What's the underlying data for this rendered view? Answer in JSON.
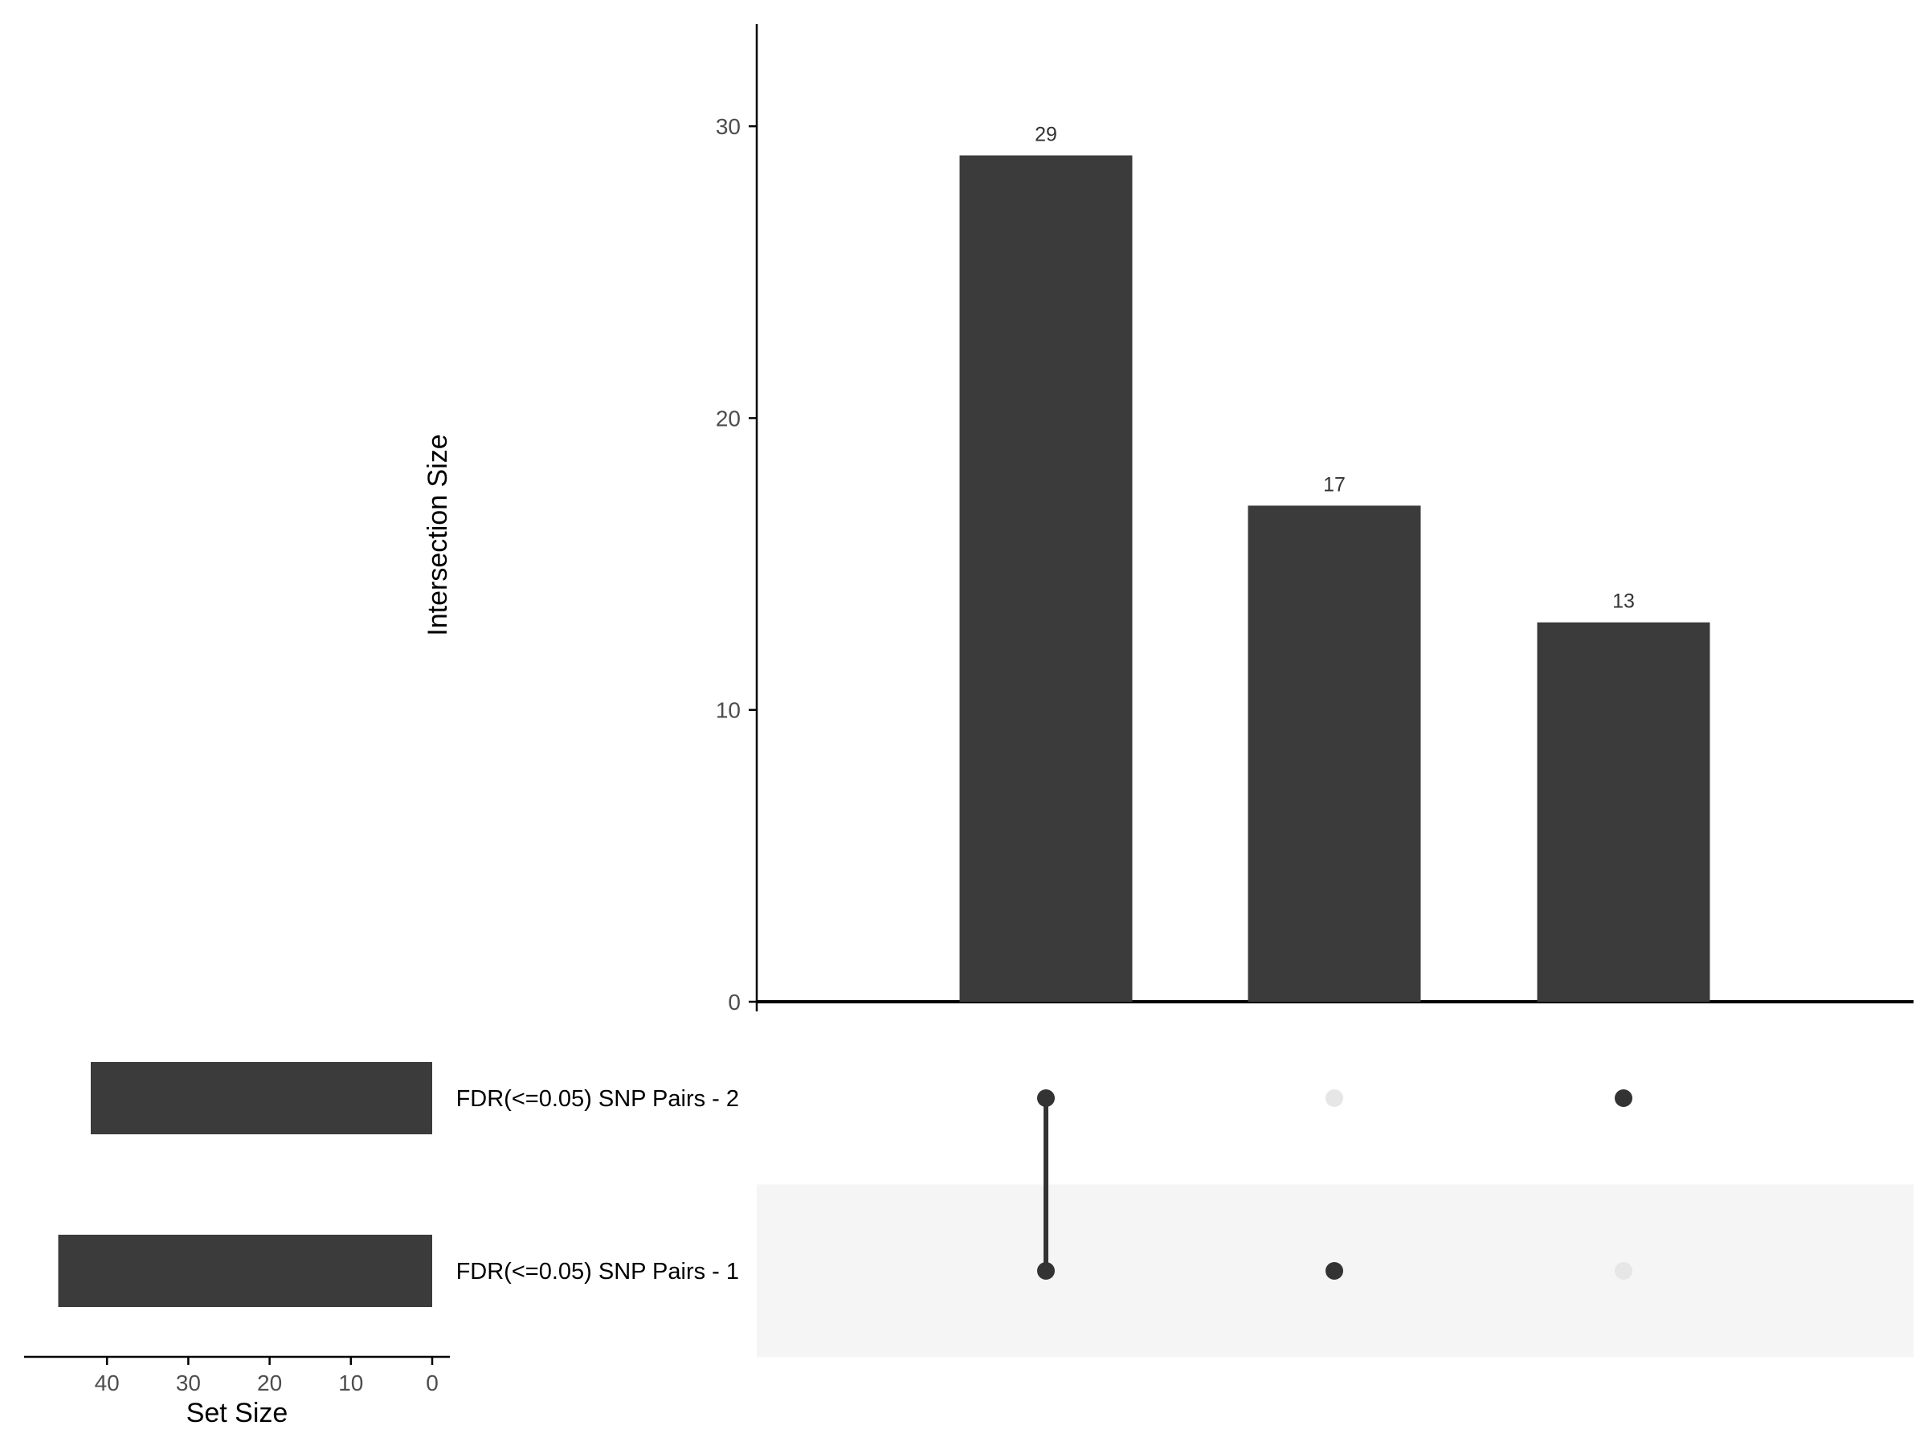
{
  "chart_data": {
    "type": "upset",
    "sets": [
      "FDR(<=0.05) SNP Pairs - 2",
      "FDR(<=0.05) SNP Pairs - 1"
    ],
    "set_sizes": [
      42,
      46
    ],
    "intersections": [
      {
        "sets": [
          "FDR(<=0.05) SNP Pairs - 2",
          "FDR(<=0.05) SNP Pairs - 1"
        ],
        "size": 29
      },
      {
        "sets": [
          "FDR(<=0.05) SNP Pairs - 1"
        ],
        "size": 17
      },
      {
        "sets": [
          "FDR(<=0.05) SNP Pairs - 2"
        ],
        "size": 13
      }
    ],
    "intersection_labels": [
      "29",
      "17",
      "13"
    ],
    "ylabel": "Intersection Size",
    "xlabel_sets": "Set Size",
    "ylim": [
      0,
      33.5
    ],
    "yticks": [
      0,
      10,
      20,
      30
    ],
    "set_size_xlim": [
      0,
      50
    ],
    "set_size_ticks": [
      40,
      30,
      20,
      10,
      0
    ],
    "colors": {
      "bar": "#3b3b3b",
      "dot_active": "#333333",
      "dot_inactive": "#e6e6e6",
      "stripe": "#f5f5f5",
      "axis": "#000000"
    }
  }
}
